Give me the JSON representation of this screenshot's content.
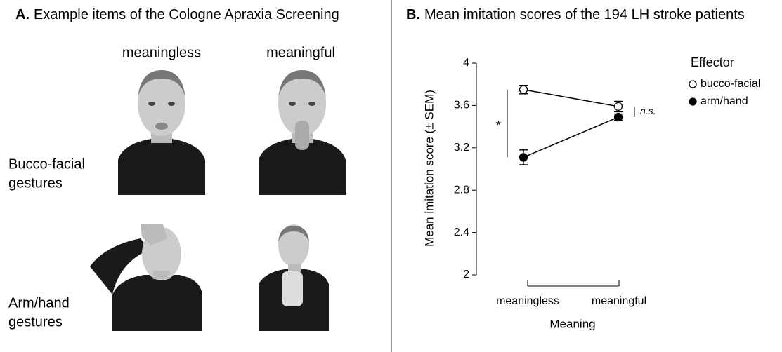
{
  "panel_a": {
    "label": "A.",
    "title": "Example items of the Cologne Apraxia Screening",
    "columns": [
      "meaningless",
      "meaningful"
    ],
    "rows": [
      [
        "Bucco-facial",
        "gestures"
      ],
      [
        "Arm/hand",
        "gestures"
      ]
    ]
  },
  "chart_data": {
    "type": "line",
    "label": "B.",
    "title": "Mean imitation scores of the 194 LH stroke patients",
    "y_label": "Mean imitation score (± SEM)",
    "x_label": "Meaning",
    "categories": [
      "meaningless",
      "meaningful"
    ],
    "series": [
      {
        "name": "bucco-facial",
        "color": "#ffffff",
        "values": [
          3.75,
          3.59
        ],
        "errors": [
          0.04,
          0.05
        ]
      },
      {
        "name": "arm/hand",
        "color": "#000000",
        "values": [
          3.11,
          3.49
        ],
        "errors": [
          0.07,
          0.03
        ]
      }
    ],
    "ylim": [
      2,
      4
    ],
    "yticks": [
      4,
      3.6,
      3.2,
      2.8,
      2.4,
      2
    ],
    "legend_title": "Effector",
    "legend": "upper right",
    "annotations": [
      "*",
      "n.s."
    ]
  }
}
